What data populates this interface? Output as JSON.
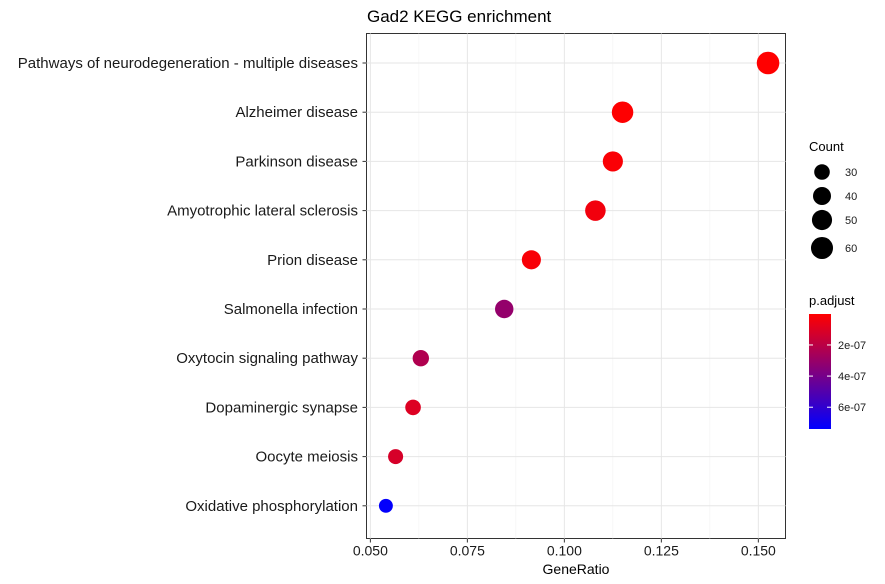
{
  "chart_data": {
    "type": "scatter",
    "title": "Gad2 KEGG enrichment",
    "xlabel": "GeneRatio",
    "ylabel": "",
    "xlim": [
      0.049,
      0.157
    ],
    "x_ticks": [
      0.05,
      0.075,
      0.1,
      0.125,
      0.15
    ],
    "x_tick_labels": [
      "0.050",
      "0.075",
      "0.100",
      "0.125",
      "0.150"
    ],
    "grid": true,
    "categories": [
      "Pathways of neurodegeneration - multiple diseases",
      "Alzheimer disease",
      "Parkinson disease",
      "Amyotrophic lateral sclerosis",
      "Prion disease",
      "Salmonella infection",
      "Oxytocin signaling pathway",
      "Dopaminergic synapse",
      "Oocyte meiosis",
      "Oxidative phosphorylation"
    ],
    "points": [
      {
        "term": "Pathways of neurodegeneration - multiple diseases",
        "gene_ratio": 0.1525,
        "count": 63,
        "p_adjust": 2e-09
      },
      {
        "term": "Alzheimer disease",
        "gene_ratio": 0.115,
        "count": 57,
        "p_adjust": 5e-09
      },
      {
        "term": "Parkinson disease",
        "gene_ratio": 0.1125,
        "count": 50,
        "p_adjust": 1.5e-08
      },
      {
        "term": "Amyotrophic lateral sclerosis",
        "gene_ratio": 0.108,
        "count": 52,
        "p_adjust": 4e-08
      },
      {
        "term": "Prion disease",
        "gene_ratio": 0.0915,
        "count": 45,
        "p_adjust": 2e-08
      },
      {
        "term": "Salmonella infection",
        "gene_ratio": 0.0845,
        "count": 42,
        "p_adjust": 3.1e-07
      },
      {
        "term": "Oxytocin signaling pathway",
        "gene_ratio": 0.063,
        "count": 33,
        "p_adjust": 2.3e-07
      },
      {
        "term": "Dopaminergic synapse",
        "gene_ratio": 0.061,
        "count": 30,
        "p_adjust": 1e-07
      },
      {
        "term": "Oocyte meiosis",
        "gene_ratio": 0.0565,
        "count": 28,
        "p_adjust": 1.2e-07
      },
      {
        "term": "Oxidative phosphorylation",
        "gene_ratio": 0.054,
        "count": 24,
        "p_adjust": 7.3e-07
      }
    ],
    "legend_count": {
      "title": "Count",
      "values": [
        30,
        40,
        50,
        60
      ],
      "labels": [
        "30",
        "40",
        "50",
        "60"
      ]
    },
    "legend_color": {
      "title": "p.adjust",
      "range": [
        1e-09,
        7.4e-07
      ],
      "low_color": "#FF0000",
      "high_color": "#0000FF",
      "ticks": [
        2e-07,
        4e-07,
        6e-07
      ],
      "tick_labels": [
        "2e-07",
        "4e-07",
        "6e-07"
      ]
    },
    "legend_placement": "right"
  }
}
